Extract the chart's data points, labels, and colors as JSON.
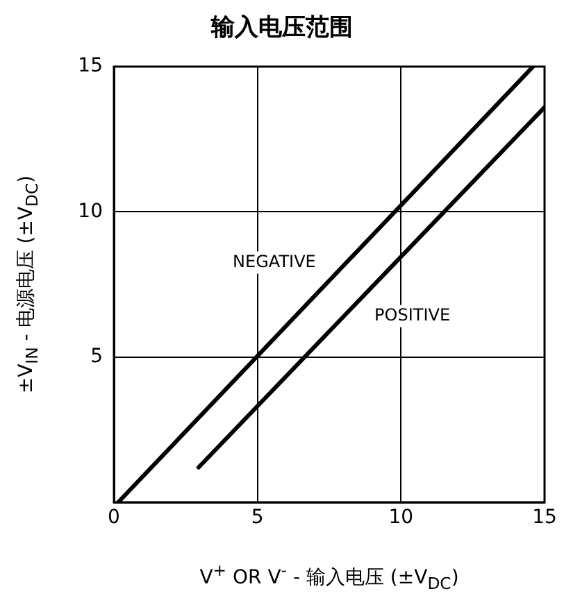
{
  "chart_data": {
    "type": "line",
    "title": "输入电压范围",
    "xlabel": "V$^{+}$ OR V$^{-}$ -    输入电压 (±V$_{DC}$)",
    "ylabel": "±V$_{IN}$ -   电源电压  (±V$_{DC}$)",
    "series": [
      {
        "name": "NEGATIVE",
        "color": "#000000",
        "x": [
          0.15,
          14.6
        ],
        "values": [
          0,
          15
        ]
      },
      {
        "name": "POSITIVE",
        "color": "#000000",
        "x": [
          2.95,
          15
        ],
        "values": [
          1.2,
          13.6
        ]
      }
    ],
    "xlim": [
      0,
      15
    ],
    "ylim": [
      0,
      15
    ],
    "xticks": [
      0,
      5,
      10,
      15
    ],
    "yticks": [
      5,
      10,
      15
    ],
    "grid": true,
    "legend": false,
    "marker": "none",
    "line_style": "solid"
  }
}
